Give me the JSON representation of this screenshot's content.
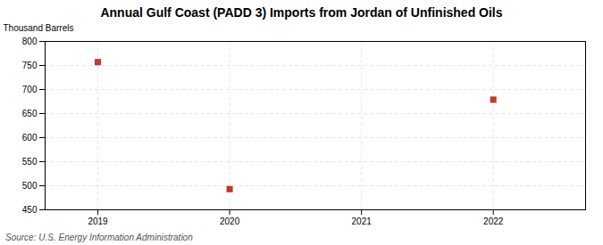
{
  "chart_data": {
    "type": "scatter",
    "title": "Annual Gulf Coast (PADD 3) Imports from Jordan of Unfinished Oils",
    "ylabel": "Thousand Barrels",
    "source": "Source: U.S. Energy Information Administration",
    "x": [
      2019,
      2020,
      2022
    ],
    "values": [
      757,
      493,
      679
    ],
    "xlim": [
      2018.6,
      2022.7
    ],
    "xticks": [
      2019,
      2020,
      2021,
      2022
    ],
    "ylim": [
      450,
      800
    ],
    "yticks": [
      450,
      500,
      550,
      600,
      650,
      700,
      750,
      800
    ],
    "grid": true,
    "color": "#c0392b",
    "marker": "square"
  }
}
